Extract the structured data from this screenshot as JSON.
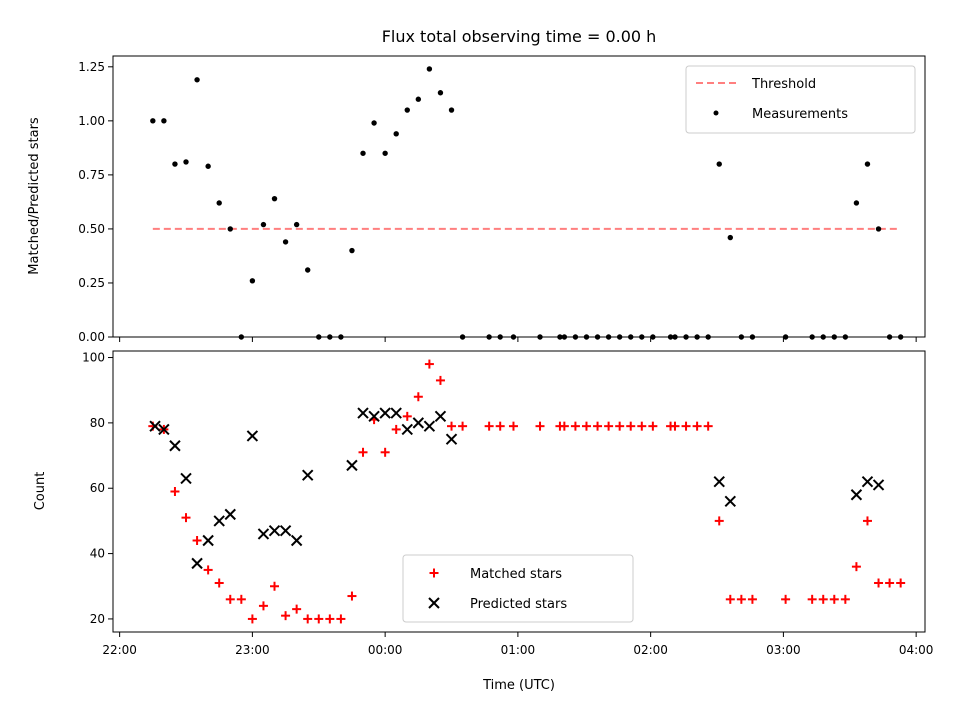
{
  "chart_data": [
    {
      "type": "scatter",
      "title": "Flux total observing time = 0.00 h",
      "ylabel": "Matched/Predicted stars",
      "xlabel": "",
      "xlim": [
        "21:57",
        "04:04"
      ],
      "ylim": [
        0,
        1.3
      ],
      "y_ticks": [
        0.0,
        0.25,
        0.5,
        0.75,
        1.0,
        1.25
      ],
      "y_tick_labels": [
        "0.00",
        "0.25",
        "0.50",
        "0.75",
        "1.00",
        "1.25"
      ],
      "x_tick_labels": [
        "",
        "",
        "",
        "",
        "",
        "",
        ""
      ],
      "legend_position": "upper-right",
      "threshold": {
        "name": "Threshold",
        "y": 0.5,
        "x_start": "22:15",
        "x_end": "03:53",
        "color": "#ff7f7f"
      },
      "series": [
        {
          "name": "Measurements",
          "marker": "dot",
          "color": "#000000",
          "points": [
            [
              "22:15",
              1.0
            ],
            [
              "22:20",
              1.0
            ],
            [
              "22:25",
              0.8
            ],
            [
              "22:30",
              0.81
            ],
            [
              "22:35",
              1.19
            ],
            [
              "22:40",
              0.79
            ],
            [
              "22:45",
              0.62
            ],
            [
              "22:50",
              0.5
            ],
            [
              "22:55",
              0.0
            ],
            [
              "23:00",
              0.26
            ],
            [
              "23:05",
              0.52
            ],
            [
              "23:10",
              0.64
            ],
            [
              "23:15",
              0.44
            ],
            [
              "23:20",
              0.52
            ],
            [
              "23:25",
              0.31
            ],
            [
              "23:30",
              0.0
            ],
            [
              "23:35",
              0.0
            ],
            [
              "23:40",
              0.0
            ],
            [
              "23:45",
              0.4
            ],
            [
              "23:50",
              0.85
            ],
            [
              "23:55",
              0.99
            ],
            [
              "00:00",
              0.85
            ],
            [
              "00:05",
              0.94
            ],
            [
              "00:10",
              1.05
            ],
            [
              "00:15",
              1.1
            ],
            [
              "00:20",
              1.24
            ],
            [
              "00:25",
              1.13
            ],
            [
              "00:30",
              1.05
            ],
            [
              "00:35",
              0.0
            ],
            [
              "00:47",
              0.0
            ],
            [
              "00:52",
              0.0
            ],
            [
              "00:58",
              0.0
            ],
            [
              "01:10",
              0.0
            ],
            [
              "01:19",
              0.0
            ],
            [
              "01:21",
              0.0
            ],
            [
              "01:26",
              0.0
            ],
            [
              "01:31",
              0.0
            ],
            [
              "01:36",
              0.0
            ],
            [
              "01:41",
              0.0
            ],
            [
              "01:46",
              0.0
            ],
            [
              "01:51",
              0.0
            ],
            [
              "01:56",
              0.0
            ],
            [
              "02:01",
              0.0
            ],
            [
              "02:09",
              0.0
            ],
            [
              "02:11",
              0.0
            ],
            [
              "02:16",
              0.0
            ],
            [
              "02:21",
              0.0
            ],
            [
              "02:26",
              0.0
            ],
            [
              "02:31",
              0.8
            ],
            [
              "02:36",
              0.46
            ],
            [
              "02:41",
              0.0
            ],
            [
              "02:46",
              0.0
            ],
            [
              "03:01",
              0.0
            ],
            [
              "03:13",
              0.0
            ],
            [
              "03:18",
              0.0
            ],
            [
              "03:23",
              0.0
            ],
            [
              "03:28",
              0.0
            ],
            [
              "03:33",
              0.62
            ],
            [
              "03:38",
              0.8
            ],
            [
              "03:43",
              0.5
            ],
            [
              "03:48",
              0.0
            ],
            [
              "03:53",
              0.0
            ]
          ]
        }
      ]
    },
    {
      "type": "scatter",
      "title": "",
      "ylabel": "Count",
      "xlabel": "Time (UTC)",
      "xlim": [
        "21:57",
        "04:04"
      ],
      "ylim": [
        16,
        102
      ],
      "y_ticks": [
        20,
        40,
        60,
        80,
        100
      ],
      "y_tick_labels": [
        "20",
        "40",
        "60",
        "80",
        "100"
      ],
      "x_ticks": [
        "22:00",
        "23:00",
        "00:00",
        "01:00",
        "02:00",
        "03:00",
        "04:00"
      ],
      "x_tick_labels": [
        "22:00",
        "23:00",
        "00:00",
        "01:00",
        "02:00",
        "03:00",
        "04:00"
      ],
      "legend_position": "lower-center",
      "series": [
        {
          "name": "Matched stars",
          "marker": "plus",
          "color": "#ff0000",
          "points": [
            [
              "22:15",
              79
            ],
            [
              "22:20",
              78
            ],
            [
              "22:25",
              59
            ],
            [
              "22:30",
              51
            ],
            [
              "22:35",
              44
            ],
            [
              "22:40",
              35
            ],
            [
              "22:45",
              31
            ],
            [
              "22:50",
              26
            ],
            [
              "22:55",
              26
            ],
            [
              "23:00",
              20
            ],
            [
              "23:05",
              24
            ],
            [
              "23:10",
              30
            ],
            [
              "23:15",
              21
            ],
            [
              "23:20",
              23
            ],
            [
              "23:25",
              20
            ],
            [
              "23:30",
              20
            ],
            [
              "23:35",
              20
            ],
            [
              "23:40",
              20
            ],
            [
              "23:45",
              27
            ],
            [
              "23:50",
              71
            ],
            [
              "23:55",
              81
            ],
            [
              "00:00",
              71
            ],
            [
              "00:05",
              78
            ],
            [
              "00:10",
              82
            ],
            [
              "00:15",
              88
            ],
            [
              "00:20",
              98
            ],
            [
              "00:25",
              93
            ],
            [
              "00:30",
              79
            ],
            [
              "00:35",
              79
            ],
            [
              "00:47",
              79
            ],
            [
              "00:52",
              79
            ],
            [
              "00:58",
              79
            ],
            [
              "01:10",
              79
            ],
            [
              "01:19",
              79
            ],
            [
              "01:21",
              79
            ],
            [
              "01:26",
              79
            ],
            [
              "01:31",
              79
            ],
            [
              "01:36",
              79
            ],
            [
              "01:41",
              79
            ],
            [
              "01:46",
              79
            ],
            [
              "01:51",
              79
            ],
            [
              "01:56",
              79
            ],
            [
              "02:01",
              79
            ],
            [
              "02:09",
              79
            ],
            [
              "02:11",
              79
            ],
            [
              "02:16",
              79
            ],
            [
              "02:21",
              79
            ],
            [
              "02:26",
              79
            ],
            [
              "02:31",
              50
            ],
            [
              "02:36",
              26
            ],
            [
              "02:41",
              26
            ],
            [
              "02:46",
              26
            ],
            [
              "03:01",
              26
            ],
            [
              "03:13",
              26
            ],
            [
              "03:18",
              26
            ],
            [
              "03:23",
              26
            ],
            [
              "03:28",
              26
            ],
            [
              "03:33",
              36
            ],
            [
              "03:38",
              50
            ],
            [
              "03:43",
              31
            ],
            [
              "03:48",
              31
            ],
            [
              "03:53",
              31
            ]
          ]
        },
        {
          "name": "Predicted stars",
          "marker": "x",
          "color": "#000000",
          "points": [
            [
              "22:16",
              79
            ],
            [
              "22:20",
              78
            ],
            [
              "22:25",
              73
            ],
            [
              "22:30",
              63
            ],
            [
              "22:35",
              37
            ],
            [
              "22:40",
              44
            ],
            [
              "22:45",
              50
            ],
            [
              "22:50",
              52
            ],
            [
              "23:00",
              76
            ],
            [
              "23:05",
              46
            ],
            [
              "23:10",
              47
            ],
            [
              "23:15",
              47
            ],
            [
              "23:20",
              44
            ],
            [
              "23:25",
              64
            ],
            [
              "23:45",
              67
            ],
            [
              "23:50",
              83
            ],
            [
              "23:55",
              82
            ],
            [
              "00:00",
              83
            ],
            [
              "00:05",
              83
            ],
            [
              "00:10",
              78
            ],
            [
              "00:15",
              80
            ],
            [
              "00:20",
              79
            ],
            [
              "00:25",
              82
            ],
            [
              "00:30",
              75
            ],
            [
              "02:31",
              62
            ],
            [
              "02:36",
              56
            ],
            [
              "03:33",
              58
            ],
            [
              "03:38",
              62
            ],
            [
              "03:43",
              61
            ]
          ]
        }
      ]
    }
  ]
}
